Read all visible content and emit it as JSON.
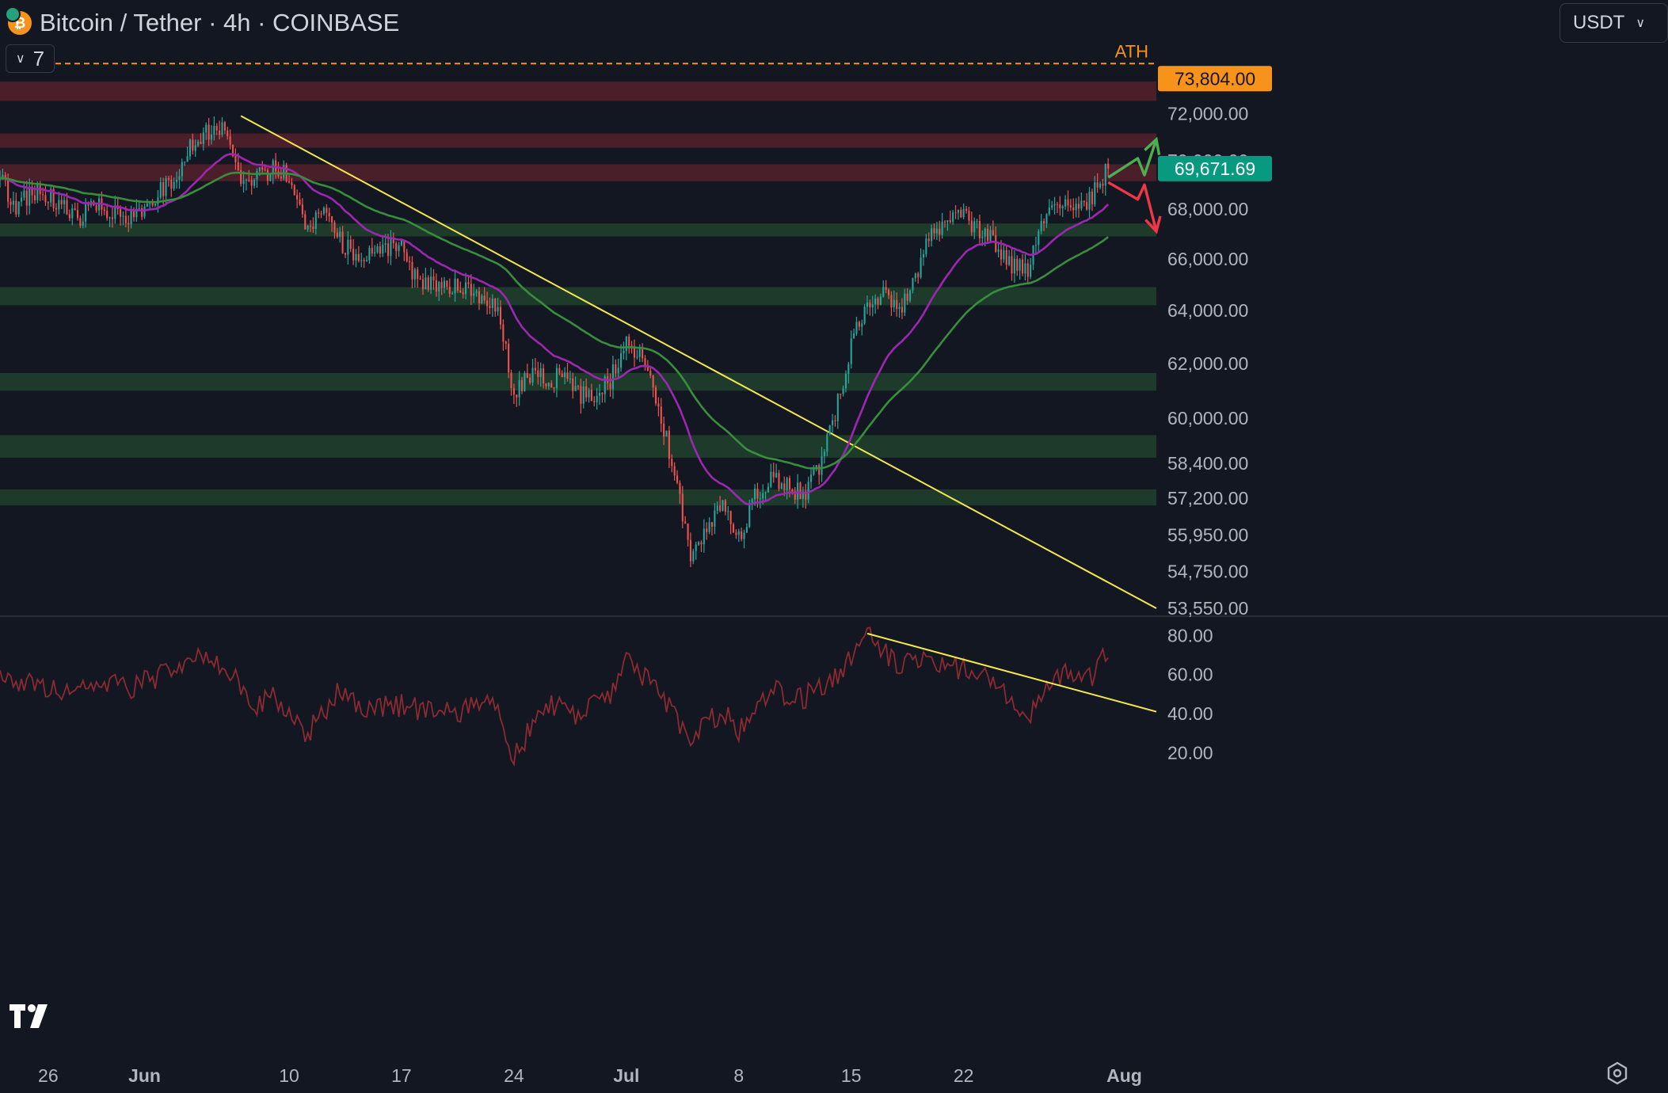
{
  "header": {
    "title": "Bitcoin / Tether · 4h · COINBASE",
    "indicator_count": "7",
    "currency": "USDT"
  },
  "chart_data": {
    "type": "candlestick",
    "interval": "4h",
    "x_tick_labels": [
      "26",
      "Jun",
      "10",
      "17",
      "24",
      "Jul",
      "8",
      "15",
      "22",
      "Aug"
    ],
    "x_ticks": [
      "2024-05-26",
      "2024-06-01",
      "2024-06-10",
      "2024-06-17",
      "2024-06-24",
      "2024-07-01",
      "2024-07-08",
      "2024-07-15",
      "2024-07-22",
      "2024-08-01"
    ],
    "x_range": [
      "2024-05-23",
      "2024-08-03"
    ],
    "price_axis": {
      "tick_labels": [
        "72,000.00",
        "68,000.00",
        "66,000.00",
        "64,000.00",
        "62,000.00",
        "60,000.00",
        "58,400.00",
        "57,200.00",
        "55,950.00",
        "54,750.00",
        "53,550.00"
      ],
      "ticks": [
        72000,
        68000,
        66000,
        64000,
        62000,
        60000,
        58400,
        57200,
        55950,
        54750,
        53550
      ],
      "log_scale": true,
      "range": [
        53500,
        74200
      ]
    },
    "ath": {
      "label": "ATH",
      "value": 73804,
      "value_label": "73,804.00"
    },
    "last_price": {
      "value": 69671.69,
      "label": "69,671.69",
      "hidden_tick_label": "70,000.00"
    },
    "resistance_zones": [
      [
        72550,
        73400
      ],
      [
        70550,
        71150
      ],
      [
        69150,
        69850
      ]
    ],
    "support_zones": [
      [
        66900,
        67420
      ],
      [
        64200,
        64900
      ],
      [
        61000,
        61650
      ],
      [
        58600,
        59400
      ],
      [
        56950,
        57500
      ]
    ],
    "price_points": [
      [
        "2024-05-23",
        69200
      ],
      [
        "2024-05-24",
        68100
      ],
      [
        "2024-05-25",
        68700
      ],
      [
        "2024-05-26",
        68600
      ],
      [
        "2024-05-27",
        68100
      ],
      [
        "2024-05-28",
        67600
      ],
      [
        "2024-05-29",
        68200
      ],
      [
        "2024-05-30",
        67800
      ],
      [
        "2024-05-31",
        67600
      ],
      [
        "2024-06-01",
        67900
      ],
      [
        "2024-06-02",
        68700
      ],
      [
        "2024-06-03",
        69200
      ],
      [
        "2024-06-04",
        70800
      ],
      [
        "2024-06-05",
        71300
      ],
      [
        "2024-06-06",
        71500
      ],
      [
        "2024-06-07",
        69300
      ],
      [
        "2024-06-08",
        69300
      ],
      [
        "2024-06-09",
        69600
      ],
      [
        "2024-06-10",
        69400
      ],
      [
        "2024-06-11",
        67300
      ],
      [
        "2024-06-12",
        67900
      ],
      [
        "2024-06-13",
        66800
      ],
      [
        "2024-06-14",
        66200
      ],
      [
        "2024-06-15",
        66300
      ],
      [
        "2024-06-16",
        66500
      ],
      [
        "2024-06-17",
        66400
      ],
      [
        "2024-06-18",
        65100
      ],
      [
        "2024-06-19",
        65000
      ],
      [
        "2024-06-20",
        64900
      ],
      [
        "2024-06-21",
        64800
      ],
      [
        "2024-06-22",
        64300
      ],
      [
        "2024-06-23",
        64300
      ],
      [
        "2024-06-24",
        60800
      ],
      [
        "2024-06-25",
        61600
      ],
      [
        "2024-06-26",
        61400
      ],
      [
        "2024-06-27",
        61500
      ],
      [
        "2024-06-28",
        60900
      ],
      [
        "2024-06-29",
        60800
      ],
      [
        "2024-06-30",
        61400
      ],
      [
        "2024-07-01",
        62800
      ],
      [
        "2024-07-02",
        62300
      ],
      [
        "2024-07-03",
        60500
      ],
      [
        "2024-07-04",
        58000
      ],
      [
        "2024-07-05",
        55200
      ],
      [
        "2024-07-06",
        56000
      ],
      [
        "2024-07-07",
        57300
      ],
      [
        "2024-07-08",
        55900
      ],
      [
        "2024-07-09",
        57200
      ],
      [
        "2024-07-10",
        57800
      ],
      [
        "2024-07-11",
        57600
      ],
      [
        "2024-07-12",
        57300
      ],
      [
        "2024-07-13",
        58200
      ],
      [
        "2024-07-14",
        60100
      ],
      [
        "2024-07-15",
        62800
      ],
      [
        "2024-07-16",
        64200
      ],
      [
        "2024-07-17",
        64800
      ],
      [
        "2024-07-18",
        63900
      ],
      [
        "2024-07-19",
        65300
      ],
      [
        "2024-07-20",
        67100
      ],
      [
        "2024-07-21",
        67500
      ],
      [
        "2024-07-22",
        67700
      ],
      [
        "2024-07-23",
        67200
      ],
      [
        "2024-07-24",
        66600
      ],
      [
        "2024-07-25",
        65700
      ],
      [
        "2024-07-26",
        65500
      ],
      [
        "2024-07-27",
        67500
      ],
      [
        "2024-07-28",
        68200
      ],
      [
        "2024-07-29",
        68000
      ],
      [
        "2024-07-30",
        68500
      ],
      [
        "2024-07-31",
        69671.69
      ]
    ],
    "trendline": {
      "from": [
        "2024-06-07",
        71900
      ],
      "to": [
        "2024-08-03",
        53550
      ]
    },
    "scenario_arrows": [
      {
        "direction": "up",
        "color": "#4caf50",
        "points": [
          [
            "2024-07-31",
            69300
          ],
          [
            "2024-08-01",
            70100
          ],
          [
            "2024-08-01",
            69400
          ],
          [
            "2024-08-03",
            70900
          ]
        ]
      },
      {
        "direction": "down",
        "color": "#f23645",
        "points": [
          [
            "2024-07-31",
            69100
          ],
          [
            "2024-08-01",
            68400
          ],
          [
            "2024-08-01",
            69000
          ],
          [
            "2024-08-03",
            67100
          ]
        ]
      }
    ],
    "moving_averages": [
      {
        "color": "#9c27b0",
        "period": 5
      },
      {
        "color": "#388e3c",
        "period": 12
      }
    ],
    "rsi": {
      "tick_labels": [
        "80.00",
        "60.00",
        "40.00",
        "20.00"
      ],
      "ticks": [
        80,
        60,
        40,
        20
      ],
      "range": [
        10,
        85
      ],
      "color": "#8b2a30",
      "points": [
        [
          "2024-05-23",
          60
        ],
        [
          "2024-05-25",
          55
        ],
        [
          "2024-05-27",
          50
        ],
        [
          "2024-05-29",
          57
        ],
        [
          "2024-05-31",
          52
        ],
        [
          "2024-06-02",
          60
        ],
        [
          "2024-06-04",
          70
        ],
        [
          "2024-06-06",
          65
        ],
        [
          "2024-06-08",
          45
        ],
        [
          "2024-06-09",
          50
        ],
        [
          "2024-06-11",
          28
        ],
        [
          "2024-06-13",
          50
        ],
        [
          "2024-06-15",
          42
        ],
        [
          "2024-06-17",
          44
        ],
        [
          "2024-06-19",
          40
        ],
        [
          "2024-06-21",
          42
        ],
        [
          "2024-06-23",
          45
        ],
        [
          "2024-06-24",
          18
        ],
        [
          "2024-06-26",
          45
        ],
        [
          "2024-06-28",
          40
        ],
        [
          "2024-06-30",
          50
        ],
        [
          "2024-07-01",
          70
        ],
        [
          "2024-07-03",
          50
        ],
        [
          "2024-07-05",
          28
        ],
        [
          "2024-07-07",
          42
        ],
        [
          "2024-07-08",
          30
        ],
        [
          "2024-07-10",
          52
        ],
        [
          "2024-07-12",
          48
        ],
        [
          "2024-07-14",
          58
        ],
        [
          "2024-07-16",
          80
        ],
        [
          "2024-07-18",
          65
        ],
        [
          "2024-07-20",
          68
        ],
        [
          "2024-07-22",
          62
        ],
        [
          "2024-07-24",
          55
        ],
        [
          "2024-07-26",
          38
        ],
        [
          "2024-07-27",
          55
        ],
        [
          "2024-07-29",
          63
        ],
        [
          "2024-07-30",
          58
        ],
        [
          "2024-07-31",
          72
        ]
      ],
      "trendline": {
        "from": [
          "2024-07-16",
          81
        ],
        "to": [
          "2024-08-03",
          41
        ]
      }
    }
  },
  "colors": {
    "background": "#131722",
    "up": "#26a69a",
    "down": "#ef5350",
    "ath_line": "#f7931a",
    "last_price": "#089981",
    "resistance_zone": "#4a1f2a",
    "support_zone": "#1e3a2b",
    "axis_text": "#b2b5be",
    "trendline": "#f5e94a"
  },
  "icons": [
    "bitcoin-icon",
    "chevron-down-icon",
    "tradingview-logo",
    "settings-icon"
  ],
  "logo_text": "TV"
}
